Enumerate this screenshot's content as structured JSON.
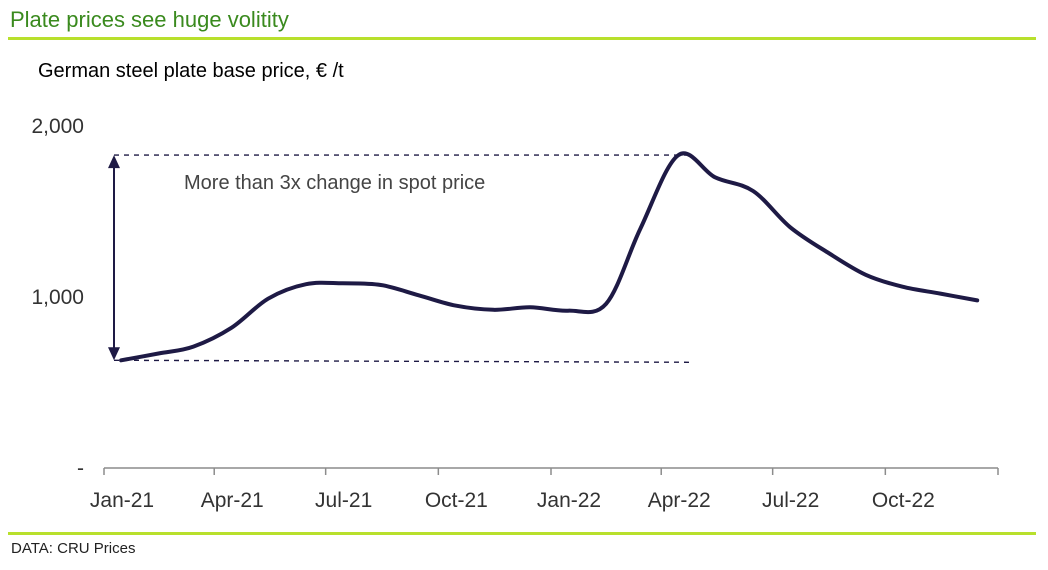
{
  "header": {
    "title": "Plate prices see huge volitity"
  },
  "footer": {
    "source": "DATA: CRU Prices"
  },
  "colors": {
    "title": "#3a8a1e",
    "rule": "#b8e02c",
    "line": "#1e1a45",
    "axis": "#8c8c8c",
    "annotation": "#1e1a45"
  },
  "chart_data": {
    "type": "line",
    "title": "German steel plate base price, € /t",
    "xlabel": "",
    "ylabel": "",
    "ylim": [
      0,
      2000
    ],
    "xlim": [
      "2021-01",
      "2022-12"
    ],
    "grid": false,
    "y_ticks": [
      {
        "value": 0,
        "label": "-"
      },
      {
        "value": 1000,
        "label": "1,000"
      },
      {
        "value": 2000,
        "label": "2,000"
      }
    ],
    "x_ticks": [
      {
        "date": "2021-01",
        "label": "Jan-21"
      },
      {
        "date": "2021-04",
        "label": "Apr-21"
      },
      {
        "date": "2021-07",
        "label": "Jul-21"
      },
      {
        "date": "2021-10",
        "label": "Oct-21"
      },
      {
        "date": "2022-01",
        "label": "Jan-22"
      },
      {
        "date": "2022-04",
        "label": "Apr-22"
      },
      {
        "date": "2022-07",
        "label": "Jul-22"
      },
      {
        "date": "2022-10",
        "label": "Oct-22"
      }
    ],
    "series": [
      {
        "x": [
          "2021-01-15",
          "2021-02-15",
          "2021-03-15",
          "2021-04-15",
          "2021-05-15",
          "2021-06-15",
          "2021-07-15",
          "2021-08-15",
          "2021-09-15",
          "2021-10-15",
          "2021-11-15",
          "2021-12-15",
          "2022-01-15",
          "2022-02-15",
          "2022-03-15",
          "2022-04-15",
          "2022-05-15",
          "2022-06-15",
          "2022-07-15",
          "2022-08-15",
          "2022-09-15",
          "2022-10-15",
          "2022-11-15",
          "2022-12-15"
        ],
        "values": [
          630,
          670,
          710,
          820,
          990,
          1075,
          1080,
          1070,
          1010,
          950,
          925,
          940,
          920,
          960,
          1400,
          1830,
          1700,
          1620,
          1410,
          1260,
          1130,
          1060,
          1020,
          980
        ]
      }
    ],
    "annotations": [
      {
        "text": "More than 3x change in spot price",
        "range": [
          630,
          1830
        ]
      }
    ]
  }
}
